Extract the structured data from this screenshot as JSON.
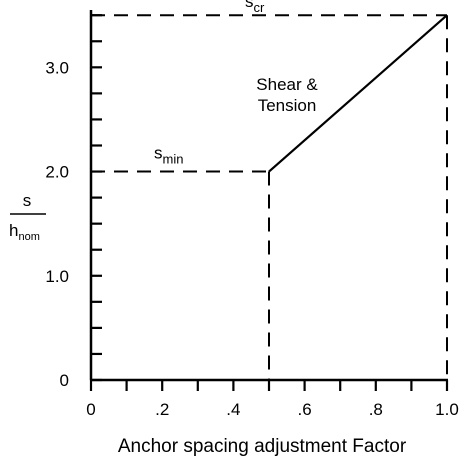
{
  "chart_data": {
    "type": "line",
    "xlabel": "Anchor spacing adjustment Factor",
    "ylabel": {
      "numerator": "s",
      "denominator_main": "h",
      "denominator_sub": "nom"
    },
    "xlim": [
      0,
      1.0
    ],
    "ylim": [
      0,
      3.55
    ],
    "x_ticks": [
      0,
      0.1,
      0.2,
      0.3,
      0.4,
      0.5,
      0.6,
      0.7,
      0.8,
      0.9,
      1.0
    ],
    "x_tick_labels": [
      {
        "value": 0,
        "label": "0"
      },
      {
        "value": 0.2,
        "label": ".2"
      },
      {
        "value": 0.4,
        "label": ".4"
      },
      {
        "value": 0.6,
        "label": ".6"
      },
      {
        "value": 0.8,
        "label": ".8"
      },
      {
        "value": 1.0,
        "label": "1.0"
      }
    ],
    "y_ticks": [
      0,
      0.25,
      0.5,
      0.75,
      1.0,
      1.25,
      1.5,
      1.75,
      2.0,
      2.25,
      2.5,
      2.75,
      3.0,
      3.25,
      3.5
    ],
    "y_tick_labels": [
      {
        "value": 0,
        "label": "0"
      },
      {
        "value": 1.0,
        "label": "1.0"
      },
      {
        "value": 2.0,
        "label": "2.0"
      },
      {
        "value": 3.0,
        "label": "3.0"
      }
    ],
    "series": [
      {
        "style": "solid",
        "x": [
          0.5,
          1.0
        ],
        "y": [
          2.0,
          3.5
        ]
      }
    ],
    "reference_lines": [
      {
        "style": "dashed",
        "x": [
          0,
          1.0
        ],
        "y": [
          3.5,
          3.5
        ]
      },
      {
        "style": "dashed",
        "x": [
          1.0,
          1.0
        ],
        "y": [
          3.5,
          0
        ]
      },
      {
        "style": "dashed",
        "x": [
          0,
          0.5
        ],
        "y": [
          2.0,
          2.0
        ]
      },
      {
        "style": "dashed",
        "x": [
          0.5,
          0.5
        ],
        "y": [
          2.0,
          0
        ]
      }
    ],
    "annotations": [
      {
        "id": "scr",
        "main": "s",
        "sub": "cr",
        "x": 0.47,
        "y": 3.62
      },
      {
        "id": "smin",
        "main": "s",
        "sub": "min",
        "x": 0.2,
        "y": 2.12
      },
      {
        "id": "shear",
        "lines": [
          "Shear &",
          "Tension"
        ],
        "x": 0.55,
        "y": 2.95
      }
    ]
  }
}
